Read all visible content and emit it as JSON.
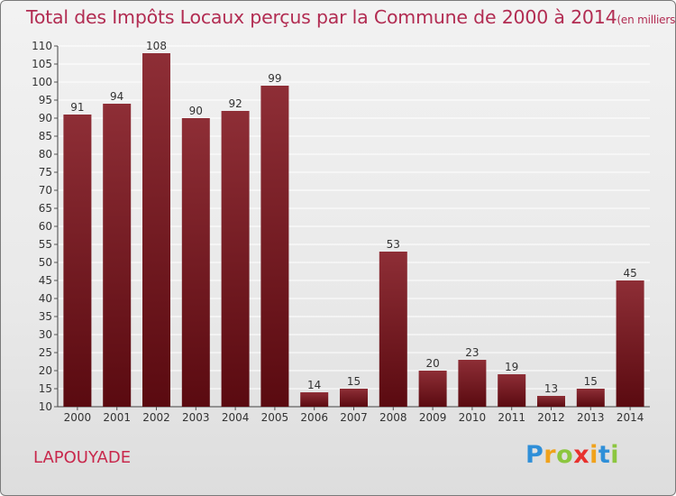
{
  "title": {
    "main": "Total des Impôts Locaux perçus par la Commune de 2000 à 2014",
    "unit": "(en milliers d'€)"
  },
  "town": "LAPOUYADE",
  "brand": {
    "letters": [
      "P",
      "r",
      "o",
      "x",
      "i",
      "t",
      "i"
    ],
    "colors": [
      "#2f8fd8",
      "#f0a21c",
      "#8cc63f",
      "#e8322e",
      "#f0a21c",
      "#2f8fd8",
      "#8cc63f"
    ]
  },
  "colors": {
    "bar_top": "#8e2e36",
    "bar_bottom": "#5a0a10",
    "grid": "#ffffff",
    "text": "#333333"
  },
  "chart_data": {
    "type": "bar",
    "title": "Total des Impôts Locaux perçus par la Commune de 2000 à 2014",
    "categories": [
      "2000",
      "2001",
      "2002",
      "2003",
      "2004",
      "2005",
      "2006",
      "2007",
      "2008",
      "2009",
      "2010",
      "2011",
      "2012",
      "2013",
      "2014"
    ],
    "values": [
      91,
      94,
      108,
      90,
      92,
      99,
      14,
      15,
      53,
      20,
      23,
      19,
      13,
      15,
      45
    ],
    "ylim": [
      10,
      110
    ],
    "yticks": [
      10,
      15,
      20,
      25,
      30,
      35,
      40,
      45,
      50,
      55,
      60,
      65,
      70,
      75,
      80,
      85,
      90,
      95,
      100,
      105,
      110
    ],
    "grid": true,
    "xlabel": "",
    "ylabel": ""
  }
}
